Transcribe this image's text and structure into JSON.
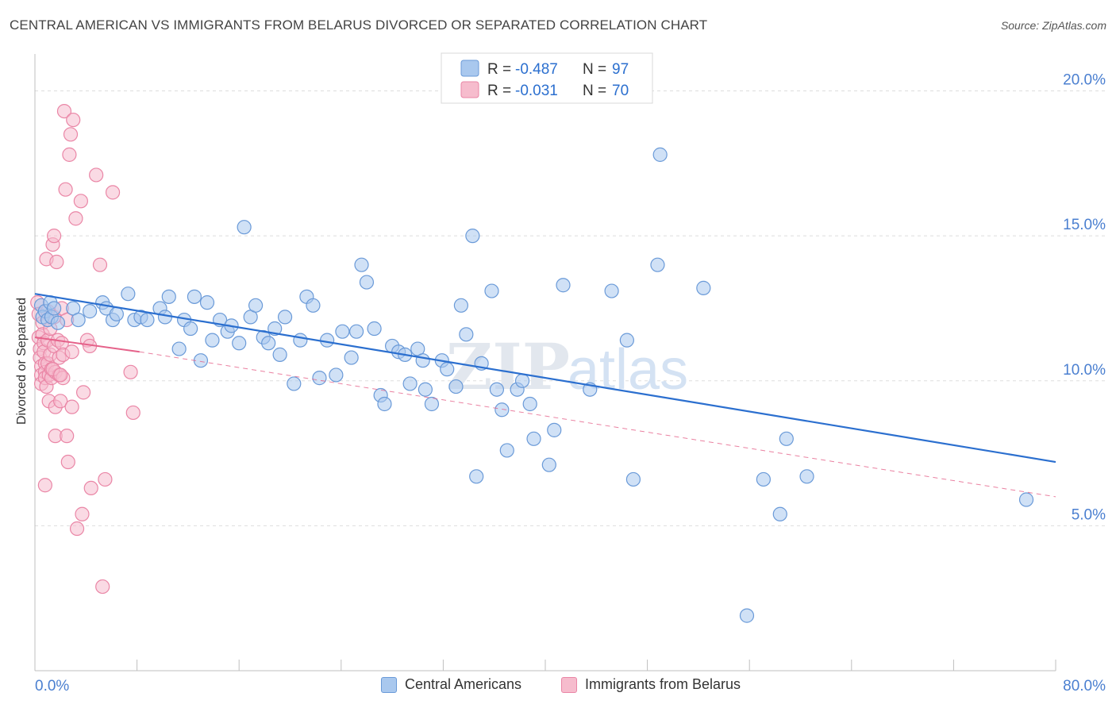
{
  "header": {
    "title": "CENTRAL AMERICAN VS IMMIGRANTS FROM BELARUS DIVORCED OR SEPARATED CORRELATION CHART",
    "source": "Source: ZipAtlas.com"
  },
  "watermark": {
    "zip": "ZIP",
    "atlas": "atlas"
  },
  "colors": {
    "blue_fill": "#a9c8ee",
    "blue_stroke": "#6a9ad8",
    "blue_line": "#2b6fcf",
    "pink_fill": "#f6bccd",
    "pink_stroke": "#ea86a6",
    "pink_line": "#e5628a",
    "axis_text": "#4a7fd0",
    "grid": "#dddddd"
  },
  "legend_top": [
    {
      "r_label": "R =",
      "r_value": "-0.487",
      "n_label": "N =",
      "n_value": "97"
    },
    {
      "r_label": "R =",
      "r_value": "-0.031",
      "n_label": "N =",
      "n_value": "70"
    }
  ],
  "legend_bottom": [
    {
      "label": "Central Americans"
    },
    {
      "label": "Immigrants from Belarus"
    }
  ],
  "chart_data": {
    "type": "scatter",
    "ylabel": "Divorced or Separated",
    "xlabel": "",
    "xlim": [
      0,
      80
    ],
    "ylim": [
      0,
      21
    ],
    "x_tick_labels": [
      "0.0%",
      "80.0%"
    ],
    "y_ticks": [
      5,
      10,
      15,
      20
    ],
    "y_tick_labels": [
      "5.0%",
      "10.0%",
      "15.0%",
      "20.0%"
    ],
    "grid": "horizontal dashed",
    "legend": "top-center",
    "series": [
      {
        "name": "Central Americans",
        "trend": {
          "x": [
            0,
            80
          ],
          "y": [
            13.0,
            7.2
          ],
          "style": "solid"
        },
        "points": [
          [
            0.5,
            12.6
          ],
          [
            0.6,
            12.2
          ],
          [
            0.8,
            12.4
          ],
          [
            1.0,
            12.1
          ],
          [
            1.2,
            12.7
          ],
          [
            1.3,
            12.2
          ],
          [
            1.5,
            12.5
          ],
          [
            1.8,
            12.0
          ],
          [
            3.0,
            12.5
          ],
          [
            3.4,
            12.1
          ],
          [
            4.3,
            12.4
          ],
          [
            5.3,
            12.7
          ],
          [
            5.6,
            12.5
          ],
          [
            6.1,
            12.1
          ],
          [
            6.4,
            12.3
          ],
          [
            7.3,
            13.0
          ],
          [
            7.8,
            12.1
          ],
          [
            8.3,
            12.2
          ],
          [
            8.8,
            12.1
          ],
          [
            9.8,
            12.5
          ],
          [
            10.2,
            12.2
          ],
          [
            10.5,
            12.9
          ],
          [
            11.3,
            11.1
          ],
          [
            11.7,
            12.1
          ],
          [
            12.2,
            11.8
          ],
          [
            12.5,
            12.9
          ],
          [
            13.0,
            10.7
          ],
          [
            13.5,
            12.7
          ],
          [
            13.9,
            11.4
          ],
          [
            14.5,
            12.1
          ],
          [
            15.1,
            11.7
          ],
          [
            15.4,
            11.9
          ],
          [
            16.0,
            11.3
          ],
          [
            16.4,
            15.3
          ],
          [
            16.9,
            12.2
          ],
          [
            17.3,
            12.6
          ],
          [
            17.9,
            11.5
          ],
          [
            18.3,
            11.3
          ],
          [
            18.8,
            11.8
          ],
          [
            19.2,
            10.9
          ],
          [
            19.6,
            12.2
          ],
          [
            20.3,
            9.9
          ],
          [
            20.8,
            11.4
          ],
          [
            21.3,
            12.9
          ],
          [
            21.8,
            12.6
          ],
          [
            22.3,
            10.1
          ],
          [
            22.9,
            11.4
          ],
          [
            23.6,
            10.2
          ],
          [
            24.1,
            11.7
          ],
          [
            24.8,
            10.8
          ],
          [
            25.2,
            11.7
          ],
          [
            25.6,
            14.0
          ],
          [
            26.0,
            13.4
          ],
          [
            26.6,
            11.8
          ],
          [
            27.1,
            9.5
          ],
          [
            27.4,
            9.2
          ],
          [
            28.0,
            11.2
          ],
          [
            28.5,
            11.0
          ],
          [
            29.0,
            10.9
          ],
          [
            29.4,
            9.9
          ],
          [
            30.0,
            11.1
          ],
          [
            30.4,
            10.7
          ],
          [
            30.6,
            9.7
          ],
          [
            31.1,
            9.2
          ],
          [
            31.9,
            10.7
          ],
          [
            32.3,
            10.4
          ],
          [
            33.0,
            9.8
          ],
          [
            33.4,
            12.6
          ],
          [
            33.8,
            11.6
          ],
          [
            34.3,
            15.0
          ],
          [
            34.6,
            6.7
          ],
          [
            35.0,
            10.6
          ],
          [
            35.8,
            13.1
          ],
          [
            36.2,
            9.7
          ],
          [
            36.6,
            9.0
          ],
          [
            37.0,
            7.6
          ],
          [
            37.8,
            9.7
          ],
          [
            38.2,
            10.0
          ],
          [
            38.8,
            9.2
          ],
          [
            39.1,
            8.0
          ],
          [
            40.3,
            7.1
          ],
          [
            40.7,
            8.3
          ],
          [
            41.4,
            13.3
          ],
          [
            43.5,
            9.7
          ],
          [
            45.2,
            13.1
          ],
          [
            46.4,
            11.4
          ],
          [
            46.9,
            6.6
          ],
          [
            48.8,
            14.0
          ],
          [
            49.0,
            17.8
          ],
          [
            52.4,
            13.2
          ],
          [
            55.8,
            1.9
          ],
          [
            57.1,
            6.6
          ],
          [
            58.4,
            5.4
          ],
          [
            58.9,
            8.0
          ],
          [
            60.5,
            6.7
          ],
          [
            77.7,
            5.9
          ]
        ]
      },
      {
        "name": "Immigrants from Belarus",
        "trend": {
          "x": [
            0,
            8.2
          ],
          "y": [
            11.5,
            11.0
          ],
          "style": "solid",
          "extended": {
            "x": [
              8.2,
              80
            ],
            "y": [
              11.0,
              6.0
            ],
            "style": "dashed"
          }
        },
        "points": [
          [
            0.2,
            12.7
          ],
          [
            0.3,
            12.3
          ],
          [
            0.3,
            11.5
          ],
          [
            0.4,
            11.1
          ],
          [
            0.4,
            10.8
          ],
          [
            0.5,
            10.5
          ],
          [
            0.5,
            10.2
          ],
          [
            0.5,
            9.9
          ],
          [
            0.6,
            12.0
          ],
          [
            0.6,
            11.6
          ],
          [
            0.7,
            11.3
          ],
          [
            0.7,
            11.0
          ],
          [
            0.8,
            10.6
          ],
          [
            0.8,
            10.3
          ],
          [
            0.8,
            10.1
          ],
          [
            0.9,
            9.8
          ],
          [
            0.9,
            14.2
          ],
          [
            1.0,
            12.4
          ],
          [
            1.0,
            11.4
          ],
          [
            1.0,
            10.6
          ],
          [
            1.1,
            10.2
          ],
          [
            1.1,
            9.3
          ],
          [
            1.2,
            11.8
          ],
          [
            1.2,
            10.9
          ],
          [
            1.3,
            10.4
          ],
          [
            1.3,
            10.1
          ],
          [
            1.4,
            14.7
          ],
          [
            1.5,
            15.0
          ],
          [
            1.5,
            12.2
          ],
          [
            1.5,
            11.2
          ],
          [
            1.6,
            10.3
          ],
          [
            1.6,
            9.1
          ],
          [
            1.6,
            8.1
          ],
          [
            1.7,
            14.1
          ],
          [
            1.8,
            11.4
          ],
          [
            1.9,
            10.8
          ],
          [
            1.9,
            10.2
          ],
          [
            2.0,
            9.3
          ],
          [
            2.1,
            12.5
          ],
          [
            2.1,
            11.3
          ],
          [
            2.2,
            10.9
          ],
          [
            2.2,
            10.1
          ],
          [
            2.3,
            19.3
          ],
          [
            2.4,
            16.6
          ],
          [
            2.5,
            12.1
          ],
          [
            2.5,
            8.1
          ],
          [
            2.6,
            7.2
          ],
          [
            2.7,
            17.8
          ],
          [
            2.8,
            18.5
          ],
          [
            2.9,
            11.0
          ],
          [
            2.9,
            9.1
          ],
          [
            3.0,
            19.0
          ],
          [
            3.2,
            15.6
          ],
          [
            3.3,
            4.9
          ],
          [
            3.6,
            16.2
          ],
          [
            3.7,
            5.4
          ],
          [
            3.8,
            9.6
          ],
          [
            4.1,
            11.4
          ],
          [
            4.3,
            11.2
          ],
          [
            4.4,
            6.3
          ],
          [
            4.8,
            17.1
          ],
          [
            5.1,
            14.0
          ],
          [
            5.3,
            2.9
          ],
          [
            5.5,
            6.6
          ],
          [
            0.8,
            6.4
          ],
          [
            1.4,
            10.4
          ],
          [
            2.0,
            10.2
          ],
          [
            6.1,
            16.5
          ],
          [
            7.5,
            10.3
          ],
          [
            7.7,
            8.9
          ]
        ]
      }
    ]
  }
}
